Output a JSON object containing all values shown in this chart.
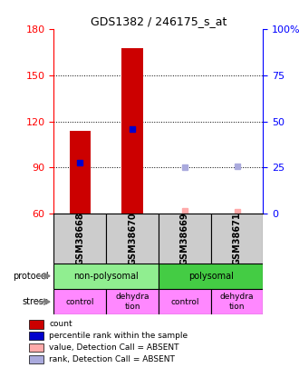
{
  "title": "GDS1382 / 246175_s_at",
  "samples": [
    "GSM38668",
    "GSM38670",
    "GSM38669",
    "GSM38671"
  ],
  "bar_values": [
    114,
    168,
    null,
    null
  ],
  "bar_bottom": [
    60,
    60,
    null,
    null
  ],
  "bar_color": "#cc0000",
  "blue_dot_values": [
    93,
    115,
    null,
    null
  ],
  "blue_dot_color": "#0000cc",
  "absent_value_values": [
    null,
    null,
    62,
    61
  ],
  "absent_value_color": "#ffaaaa",
  "absent_rank_values": [
    null,
    null,
    90,
    91
  ],
  "absent_rank_color": "#aaaadd",
  "ylim_left": [
    60,
    180
  ],
  "ylim_right": [
    0,
    100
  ],
  "yticks_left": [
    60,
    90,
    120,
    150,
    180
  ],
  "yticks_right": [
    0,
    25,
    50,
    75,
    100
  ],
  "ytick_labels_right": [
    "0",
    "25",
    "50",
    "75",
    "100%"
  ],
  "grid_values": [
    90,
    120,
    150
  ],
  "protocol_row": [
    "non-polysomal",
    "non-polysomal",
    "polysomal",
    "polysomal"
  ],
  "stress_row": [
    "control",
    "dehydra\ntion",
    "control",
    "dehydra\ntion"
  ],
  "protocol_colors": {
    "non-polysomal": "#90ee90",
    "polysomal": "#44cc44"
  },
  "stress_color": "#ff88ff",
  "sample_bg_color": "#cccccc",
  "legend_items": [
    {
      "color": "#cc0000",
      "label": "count"
    },
    {
      "color": "#0000cc",
      "label": "percentile rank within the sample"
    },
    {
      "color": "#ffaaaa",
      "label": "value, Detection Call = ABSENT"
    },
    {
      "color": "#aaaadd",
      "label": "rank, Detection Call = ABSENT"
    }
  ]
}
